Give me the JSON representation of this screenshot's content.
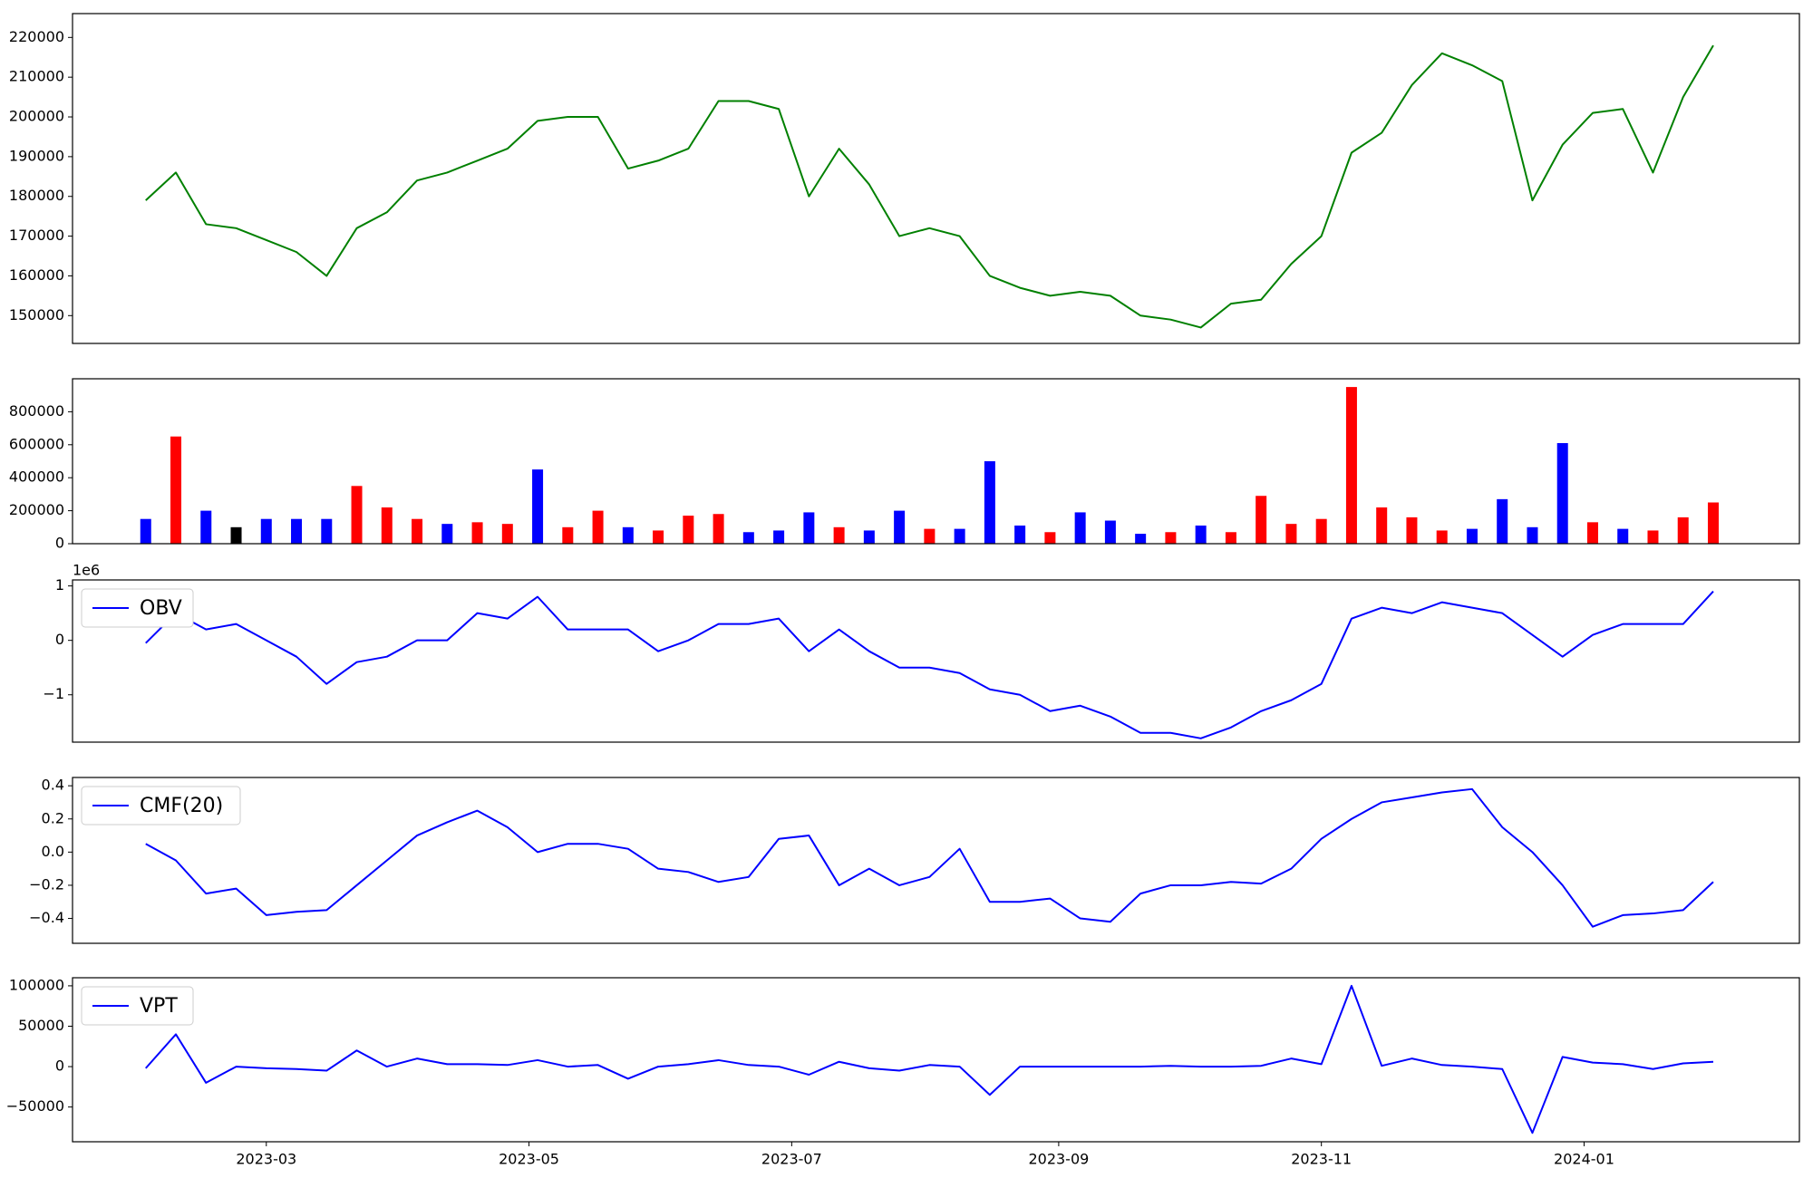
{
  "chart_data": [
    {
      "type": "line",
      "x": [
        "2023-02-01",
        "2023-02-08",
        "2023-02-15",
        "2023-02-22",
        "2023-03-01",
        "2023-03-08",
        "2023-03-15",
        "2023-03-22",
        "2023-03-29",
        "2023-04-05",
        "2023-04-12",
        "2023-04-19",
        "2023-04-26",
        "2023-05-03",
        "2023-05-10",
        "2023-05-17",
        "2023-05-24",
        "2023-05-31",
        "2023-06-07",
        "2023-06-14",
        "2023-06-21",
        "2023-06-28",
        "2023-07-05",
        "2023-07-12",
        "2023-07-19",
        "2023-07-26",
        "2023-08-02",
        "2023-08-09",
        "2023-08-16",
        "2023-08-23",
        "2023-08-30",
        "2023-09-06",
        "2023-09-13",
        "2023-09-20",
        "2023-09-27",
        "2023-10-04",
        "2023-10-11",
        "2023-10-18",
        "2023-10-25",
        "2023-11-01",
        "2023-11-08",
        "2023-11-15",
        "2023-11-22",
        "2023-11-29",
        "2023-12-06",
        "2023-12-13",
        "2023-12-20",
        "2023-12-27",
        "2024-01-03",
        "2024-01-10",
        "2024-01-17",
        "2024-01-24",
        "2024-01-31"
      ],
      "series": [
        {
          "color": "green",
          "values": [
            179000,
            186000,
            173000,
            172000,
            169000,
            166000,
            160000,
            172000,
            176000,
            184000,
            186000,
            189000,
            192000,
            199000,
            200000,
            200000,
            187000,
            189000,
            192000,
            204000,
            204000,
            202000,
            180000,
            192000,
            183000,
            170000,
            172000,
            170000,
            160000,
            157000,
            155000,
            156000,
            155000,
            150000,
            149000,
            147000,
            153000,
            154000,
            163000,
            170000,
            191000,
            196000,
            208000,
            216000,
            213000,
            209000,
            179000,
            193000,
            201000,
            202000,
            186000,
            205000,
            218000
          ]
        }
      ],
      "xlim": [
        "2023-01-15",
        "2024-02-20"
      ],
      "ylim": [
        143000,
        226000
      ],
      "yticks": [
        150000,
        160000,
        170000,
        180000,
        190000,
        200000,
        210000,
        220000
      ]
    },
    {
      "type": "bar",
      "x": [
        "2023-02-01",
        "2023-02-08",
        "2023-02-15",
        "2023-02-22",
        "2023-03-01",
        "2023-03-08",
        "2023-03-15",
        "2023-03-22",
        "2023-03-29",
        "2023-04-05",
        "2023-04-12",
        "2023-04-19",
        "2023-04-26",
        "2023-05-03",
        "2023-05-10",
        "2023-05-17",
        "2023-05-24",
        "2023-05-31",
        "2023-06-07",
        "2023-06-14",
        "2023-06-21",
        "2023-06-28",
        "2023-07-05",
        "2023-07-12",
        "2023-07-19",
        "2023-07-26",
        "2023-08-02",
        "2023-08-09",
        "2023-08-16",
        "2023-08-23",
        "2023-08-30",
        "2023-09-06",
        "2023-09-13",
        "2023-09-20",
        "2023-09-27",
        "2023-10-04",
        "2023-10-11",
        "2023-10-18",
        "2023-10-25",
        "2023-11-01",
        "2023-11-08",
        "2023-11-15",
        "2023-11-22",
        "2023-11-29",
        "2023-12-06",
        "2023-12-13",
        "2023-12-20",
        "2023-12-27",
        "2024-01-03",
        "2024-01-10",
        "2024-01-17",
        "2024-01-24",
        "2024-01-31"
      ],
      "values": [
        150000,
        650000,
        200000,
        100000,
        150000,
        150000,
        150000,
        350000,
        220000,
        150000,
        120000,
        130000,
        120000,
        450000,
        100000,
        200000,
        100000,
        80000,
        170000,
        180000,
        70000,
        80000,
        190000,
        100000,
        80000,
        200000,
        90000,
        90000,
        500000,
        110000,
        70000,
        190000,
        140000,
        60000,
        70000,
        110000,
        70000,
        290000,
        120000,
        150000,
        950000,
        220000,
        160000,
        80000,
        90000,
        270000,
        100000,
        610000,
        130000,
        90000,
        80000,
        160000,
        250000
      ],
      "colors": [
        "blue",
        "red",
        "blue",
        "black",
        "blue",
        "blue",
        "blue",
        "red",
        "red",
        "red",
        "blue",
        "red",
        "red",
        "blue",
        "red",
        "red",
        "blue",
        "red",
        "red",
        "red",
        "blue",
        "blue",
        "blue",
        "red",
        "blue",
        "blue",
        "red",
        "blue",
        "blue",
        "blue",
        "red",
        "blue",
        "blue",
        "blue",
        "red",
        "blue",
        "red",
        "red",
        "red",
        "red",
        "red",
        "red",
        "red",
        "red",
        "blue",
        "blue",
        "blue",
        "blue",
        "red",
        "blue",
        "red",
        "red",
        "red"
      ],
      "xlim": [
        "2023-01-15",
        "2024-02-20"
      ],
      "ylim": [
        0,
        1000000
      ],
      "yticks": [
        0,
        200000,
        400000,
        600000,
        800000
      ]
    },
    {
      "type": "line",
      "x": [
        "2023-02-01",
        "2023-02-08",
        "2023-02-15",
        "2023-02-22",
        "2023-03-01",
        "2023-03-08",
        "2023-03-15",
        "2023-03-22",
        "2023-03-29",
        "2023-04-05",
        "2023-04-12",
        "2023-04-19",
        "2023-04-26",
        "2023-05-03",
        "2023-05-10",
        "2023-05-17",
        "2023-05-24",
        "2023-05-31",
        "2023-06-07",
        "2023-06-14",
        "2023-06-21",
        "2023-06-28",
        "2023-07-05",
        "2023-07-12",
        "2023-07-19",
        "2023-07-26",
        "2023-08-02",
        "2023-08-09",
        "2023-08-16",
        "2023-08-23",
        "2023-08-30",
        "2023-09-06",
        "2023-09-13",
        "2023-09-20",
        "2023-09-27",
        "2023-10-04",
        "2023-10-11",
        "2023-10-18",
        "2023-10-25",
        "2023-11-01",
        "2023-11-08",
        "2023-11-15",
        "2023-11-22",
        "2023-11-29",
        "2023-12-06",
        "2023-12-13",
        "2023-12-20",
        "2023-12-27",
        "2024-01-03",
        "2024-01-10",
        "2024-01-17",
        "2024-01-24",
        "2024-01-31"
      ],
      "series": [
        {
          "name": "OBV",
          "color": "blue",
          "values": [
            -50000,
            500000,
            200000,
            300000,
            0,
            -300000,
            -800000,
            -400000,
            -300000,
            0,
            0,
            500000,
            400000,
            800000,
            200000,
            200000,
            200000,
            -200000,
            0,
            300000,
            300000,
            400000,
            -200000,
            200000,
            -200000,
            -500000,
            -500000,
            -600000,
            -900000,
            -1000000,
            -1300000,
            -1200000,
            -1400000,
            -1700000,
            -1700000,
            -1800000,
            -1600000,
            -1300000,
            -1100000,
            -800000,
            400000,
            600000,
            500000,
            700000,
            600000,
            500000,
            100000,
            -300000,
            100000,
            300000,
            300000,
            300000,
            900000
          ]
        }
      ],
      "legend": "upper left",
      "y_offset_label": "1e6",
      "xlim": [
        "2023-01-15",
        "2024-02-20"
      ],
      "ylim": [
        -1870000,
        1110000
      ],
      "yticks": [
        {
          "value": -1000000,
          "label": "−1"
        },
        0,
        {
          "value": 1000000,
          "label": "1"
        }
      ]
    },
    {
      "type": "line",
      "x": [
        "2023-02-01",
        "2023-02-08",
        "2023-02-15",
        "2023-02-22",
        "2023-03-01",
        "2023-03-08",
        "2023-03-15",
        "2023-03-22",
        "2023-03-29",
        "2023-04-05",
        "2023-04-12",
        "2023-04-19",
        "2023-04-26",
        "2023-05-03",
        "2023-05-10",
        "2023-05-17",
        "2023-05-24",
        "2023-05-31",
        "2023-06-07",
        "2023-06-14",
        "2023-06-21",
        "2023-06-28",
        "2023-07-05",
        "2023-07-12",
        "2023-07-19",
        "2023-07-26",
        "2023-08-02",
        "2023-08-09",
        "2023-08-16",
        "2023-08-23",
        "2023-08-30",
        "2023-09-06",
        "2023-09-13",
        "2023-09-20",
        "2023-09-27",
        "2023-10-04",
        "2023-10-11",
        "2023-10-18",
        "2023-10-25",
        "2023-11-01",
        "2023-11-08",
        "2023-11-15",
        "2023-11-22",
        "2023-11-29",
        "2023-12-06",
        "2023-12-13",
        "2023-12-20",
        "2023-12-27",
        "2024-01-03",
        "2024-01-10",
        "2024-01-17",
        "2024-01-24",
        "2024-01-31"
      ],
      "series": [
        {
          "name": "CMF(20)",
          "color": "blue",
          "values": [
            0.05,
            -0.05,
            -0.25,
            -0.22,
            -0.38,
            -0.36,
            -0.35,
            -0.2,
            -0.05,
            0.1,
            0.18,
            0.25,
            0.15,
            0.0,
            0.05,
            0.05,
            0.02,
            -0.1,
            -0.12,
            -0.18,
            -0.15,
            0.08,
            0.1,
            -0.2,
            -0.1,
            -0.2,
            -0.15,
            0.02,
            -0.3,
            -0.3,
            -0.28,
            -0.4,
            -0.42,
            -0.25,
            -0.2,
            -0.2,
            -0.18,
            -0.19,
            -0.1,
            0.08,
            0.2,
            0.3,
            0.33,
            0.36,
            0.38,
            0.15,
            0.0,
            -0.2,
            -0.45,
            -0.38,
            -0.37,
            -0.35,
            -0.18
          ]
        }
      ],
      "legend": "upper left",
      "xlim": [
        "2023-01-15",
        "2024-02-20"
      ],
      "ylim": [
        -0.55,
        0.45
      ],
      "yticks": [
        {
          "value": -0.4,
          "label": "−0.4"
        },
        {
          "value": -0.2,
          "label": "−0.2"
        },
        {
          "value": 0,
          "label": "0.0"
        },
        {
          "value": 0.2,
          "label": "0.2"
        },
        {
          "value": 0.4,
          "label": "0.4"
        }
      ]
    },
    {
      "type": "line",
      "x": [
        "2023-02-01",
        "2023-02-08",
        "2023-02-15",
        "2023-02-22",
        "2023-03-01",
        "2023-03-08",
        "2023-03-15",
        "2023-03-22",
        "2023-03-29",
        "2023-04-05",
        "2023-04-12",
        "2023-04-19",
        "2023-04-26",
        "2023-05-03",
        "2023-05-10",
        "2023-05-17",
        "2023-05-24",
        "2023-05-31",
        "2023-06-07",
        "2023-06-14",
        "2023-06-21",
        "2023-06-28",
        "2023-07-05",
        "2023-07-12",
        "2023-07-19",
        "2023-07-26",
        "2023-08-02",
        "2023-08-09",
        "2023-08-16",
        "2023-08-23",
        "2023-08-30",
        "2023-09-06",
        "2023-09-13",
        "2023-09-20",
        "2023-09-27",
        "2023-10-04",
        "2023-10-11",
        "2023-10-18",
        "2023-10-25",
        "2023-11-01",
        "2023-11-08",
        "2023-11-15",
        "2023-11-22",
        "2023-11-29",
        "2023-12-06",
        "2023-12-13",
        "2023-12-20",
        "2023-12-27",
        "2024-01-03",
        "2024-01-10",
        "2024-01-17",
        "2024-01-24",
        "2024-01-31"
      ],
      "series": [
        {
          "name": "VPT",
          "color": "blue",
          "values": [
            -2000,
            40000,
            -20000,
            0,
            -2000,
            -3000,
            -5000,
            20000,
            0,
            10000,
            3000,
            3000,
            2000,
            8000,
            0,
            2000,
            -15000,
            0,
            3000,
            8000,
            2000,
            0,
            -10000,
            6000,
            -2000,
            -5000,
            2000,
            0,
            -35000,
            0,
            0,
            0,
            0,
            0,
            1000,
            0,
            0,
            1000,
            10000,
            3000,
            100000,
            1000,
            10000,
            2000,
            0,
            -3000,
            -82000,
            12000,
            5000,
            3000,
            -3000,
            4000,
            6000
          ]
        }
      ],
      "legend": "upper left",
      "xlim": [
        "2023-01-15",
        "2024-02-20"
      ],
      "ylim": [
        -93000,
        110000
      ],
      "yticks": [
        {
          "value": -50000,
          "label": "−50000"
        },
        0,
        50000,
        100000
      ],
      "xticks": [
        {
          "value": "2023-03-01",
          "label": "2023-03"
        },
        {
          "value": "2023-05-01",
          "label": "2023-05"
        },
        {
          "value": "2023-07-01",
          "label": "2023-07"
        },
        {
          "value": "2023-09-01",
          "label": "2023-09"
        },
        {
          "value": "2023-11-01",
          "label": "2023-11"
        },
        {
          "value": "2024-01-01",
          "label": "2024-01"
        }
      ]
    }
  ]
}
